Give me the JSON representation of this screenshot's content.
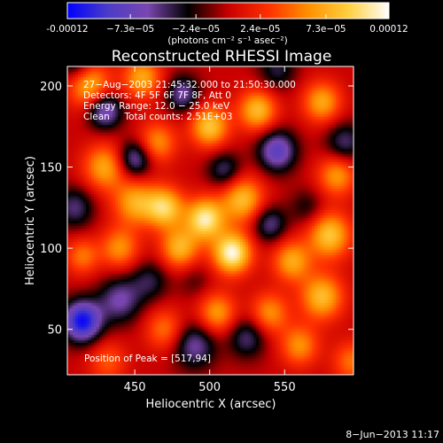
{
  "chart_data": {
    "type": "heatmap",
    "title": "Reconstructed RHESSI Image",
    "xlabel": "Heliocentric X (arcsec)",
    "ylabel": "Heliocentric Y (arcsec)",
    "xlim": [
      405,
      596
    ],
    "ylim": [
      22,
      212
    ],
    "x_ticks": [
      450,
      500,
      550
    ],
    "y_ticks": [
      50,
      100,
      150,
      200
    ],
    "grid": false,
    "colorbar": {
      "position": "top",
      "vmin": -0.00012,
      "vmax": 0.00012,
      "tick_labels": [
        "-0.00012",
        "−7.3e−05",
        "−2.4e−05",
        "2.4e−05",
        "7.3e−05",
        "0.00012"
      ],
      "tick_values": [
        -0.00012,
        -7.3e-05,
        -2.4e-05,
        2.4e-05,
        7.3e-05,
        0.00012
      ],
      "unit_label": "(photons cm⁻² s⁻¹ asec⁻²)",
      "colormap": [
        "#0000ff",
        "#4b3cc8",
        "#7a46b0",
        "#000000",
        "#c80000",
        "#ff3000",
        "#ff9000",
        "#ffd040",
        "#ffffff"
      ]
    },
    "annotations": [
      "27−Aug−2003 21:45:32.000 to 21:50:30.000",
      "Detectors: 4F 5F 6F 7F 8F, Att 0",
      "Energy Range: 12.0 − 25.0 keV",
      "Clean     Total counts: 2.51E+03"
    ],
    "peak_label": "Position of Peak = [517,94]",
    "peak": [
      517,
      94
    ],
    "blobs": [
      {
        "x": 515,
        "y": 97,
        "v": 0.000115,
        "s": 9
      },
      {
        "x": 497,
        "y": 118,
        "v": 0.000105,
        "s": 9
      },
      {
        "x": 470,
        "y": 125,
        "v": 9e-05,
        "s": 9
      },
      {
        "x": 522,
        "y": 130,
        "v": 8e-05,
        "s": 10
      },
      {
        "x": 480,
        "y": 100,
        "v": 7.5e-05,
        "s": 9
      },
      {
        "x": 450,
        "y": 128,
        "v": 7e-05,
        "s": 10
      },
      {
        "x": 430,
        "y": 150,
        "v": 7e-05,
        "s": 10
      },
      {
        "x": 420,
        "y": 200,
        "v": 7.5e-05,
        "s": 10
      },
      {
        "x": 455,
        "y": 205,
        "v": 7e-05,
        "s": 9
      },
      {
        "x": 500,
        "y": 175,
        "v": 8.5e-05,
        "s": 9
      },
      {
        "x": 532,
        "y": 185,
        "v": 8e-05,
        "s": 9
      },
      {
        "x": 575,
        "y": 190,
        "v": 7e-05,
        "s": 9
      },
      {
        "x": 580,
        "y": 108,
        "v": 8.5e-05,
        "s": 10
      },
      {
        "x": 575,
        "y": 70,
        "v": 8e-05,
        "s": 10
      },
      {
        "x": 555,
        "y": 92,
        "v": 7e-05,
        "s": 9
      },
      {
        "x": 540,
        "y": 60,
        "v": 6e-05,
        "s": 9
      },
      {
        "x": 505,
        "y": 60,
        "v": 6.5e-05,
        "s": 9
      },
      {
        "x": 470,
        "y": 50,
        "v": 5e-05,
        "s": 9
      },
      {
        "x": 440,
        "y": 100,
        "v": 6e-05,
        "s": 9
      },
      {
        "x": 415,
        "y": 95,
        "v": 5e-05,
        "s": 8
      },
      {
        "x": 465,
        "y": 165,
        "v": 6e-05,
        "s": 9
      },
      {
        "x": 585,
        "y": 145,
        "v": 6.5e-05,
        "s": 9
      },
      {
        "x": 560,
        "y": 40,
        "v": 6e-05,
        "s": 9
      },
      {
        "x": 432,
        "y": 30,
        "v": 4e-05,
        "s": 9
      },
      {
        "x": 595,
        "y": 30,
        "v": 5e-05,
        "s": 9
      },
      {
        "x": 415,
        "y": 55,
        "v": -0.000115,
        "s": 9
      },
      {
        "x": 440,
        "y": 68,
        "v": -6e-05,
        "s": 10
      },
      {
        "x": 430,
        "y": 185,
        "v": -8e-05,
        "s": 8
      },
      {
        "x": 450,
        "y": 155,
        "v": -7e-05,
        "s": 8
      },
      {
        "x": 545,
        "y": 160,
        "v": -8e-05,
        "s": 9
      },
      {
        "x": 510,
        "y": 148,
        "v": -5e-05,
        "s": 8
      },
      {
        "x": 482,
        "y": 195,
        "v": -6e-05,
        "s": 8
      },
      {
        "x": 490,
        "y": 40,
        "v": -6e-05,
        "s": 10
      },
      {
        "x": 525,
        "y": 45,
        "v": -5e-05,
        "s": 9
      },
      {
        "x": 540,
        "y": 115,
        "v": -5.5e-05,
        "s": 8
      },
      {
        "x": 590,
        "y": 165,
        "v": -5e-05,
        "s": 9
      },
      {
        "x": 460,
        "y": 80,
        "v": -4e-05,
        "s": 9
      },
      {
        "x": 410,
        "y": 125,
        "v": -5e-05,
        "s": 9
      },
      {
        "x": 410,
        "y": 215,
        "v": -5e-05,
        "s": 8
      },
      {
        "x": 545,
        "y": 210,
        "v": -4e-05,
        "s": 9
      },
      {
        "x": 490,
        "y": 80,
        "v": -2e-05,
        "s": 8
      },
      {
        "x": 565,
        "y": 125,
        "v": -3e-05,
        "s": 8
      }
    ]
  },
  "footer": {
    "timestamp": "8−Jun−2013 11:17"
  }
}
